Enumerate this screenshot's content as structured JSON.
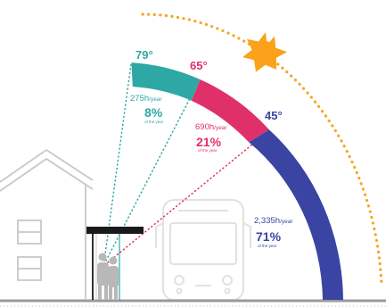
{
  "segments": [
    {
      "angle": "79°",
      "hours": "275h",
      "hours_unit": "/year",
      "percent": "8%",
      "caption": "of the year",
      "color": "#2ea8a5"
    },
    {
      "angle": "65°",
      "hours": "690h",
      "hours_unit": "/year",
      "percent": "21%",
      "caption": "of the year",
      "color": "#e0306a"
    },
    {
      "angle": "45°",
      "hours": "2,335h",
      "hours_unit": "/year",
      "percent": "71%",
      "caption": "of the year",
      "color": "#3a45a3"
    }
  ],
  "colors": {
    "sun": "#f9a21a",
    "sun_path": "#f5a623",
    "outline": "#c8c8c8",
    "bus_outline": "#dedede",
    "shelter_roof": "#1a1a1a",
    "ground": "#9a9a9a"
  },
  "icons": [
    "sun-icon",
    "house-icon",
    "bus-icon",
    "bus-shelter-icon",
    "people-icon"
  ]
}
